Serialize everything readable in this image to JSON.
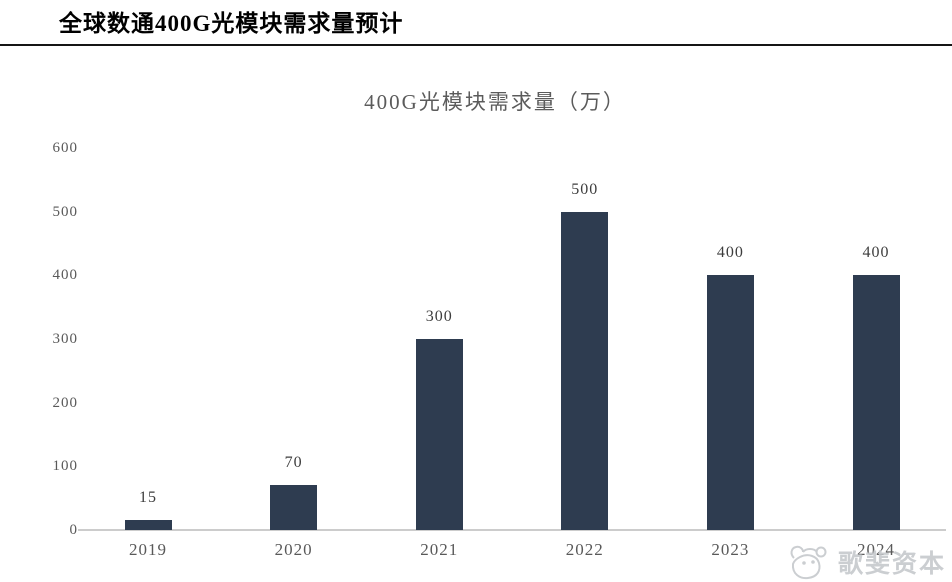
{
  "header": {
    "title": "全球数通400G光模块需求量预计"
  },
  "watermark": {
    "text": "歌斐资本",
    "logo": "gopher-logo"
  },
  "chart_data": {
    "type": "bar",
    "title": "400G光模块需求量（万）",
    "categories": [
      "2019",
      "2020",
      "2021",
      "2022",
      "2023",
      "2024"
    ],
    "values": [
      15,
      70,
      300,
      500,
      400,
      400
    ],
    "data_labels": [
      "15",
      "70",
      "300",
      "500",
      "400",
      "400"
    ],
    "xlabel": "",
    "ylabel": "",
    "ylim": [
      0,
      600
    ],
    "yticks": [
      0,
      100,
      200,
      300,
      400,
      500,
      600
    ],
    "grid": false,
    "legend": "none",
    "bar_color": "#2e3c50",
    "value_label_color": "#3d3d3d",
    "tick_label_color": "#595959",
    "axis_line_color": "#cccccc",
    "title_color": "#5b5b5b"
  }
}
